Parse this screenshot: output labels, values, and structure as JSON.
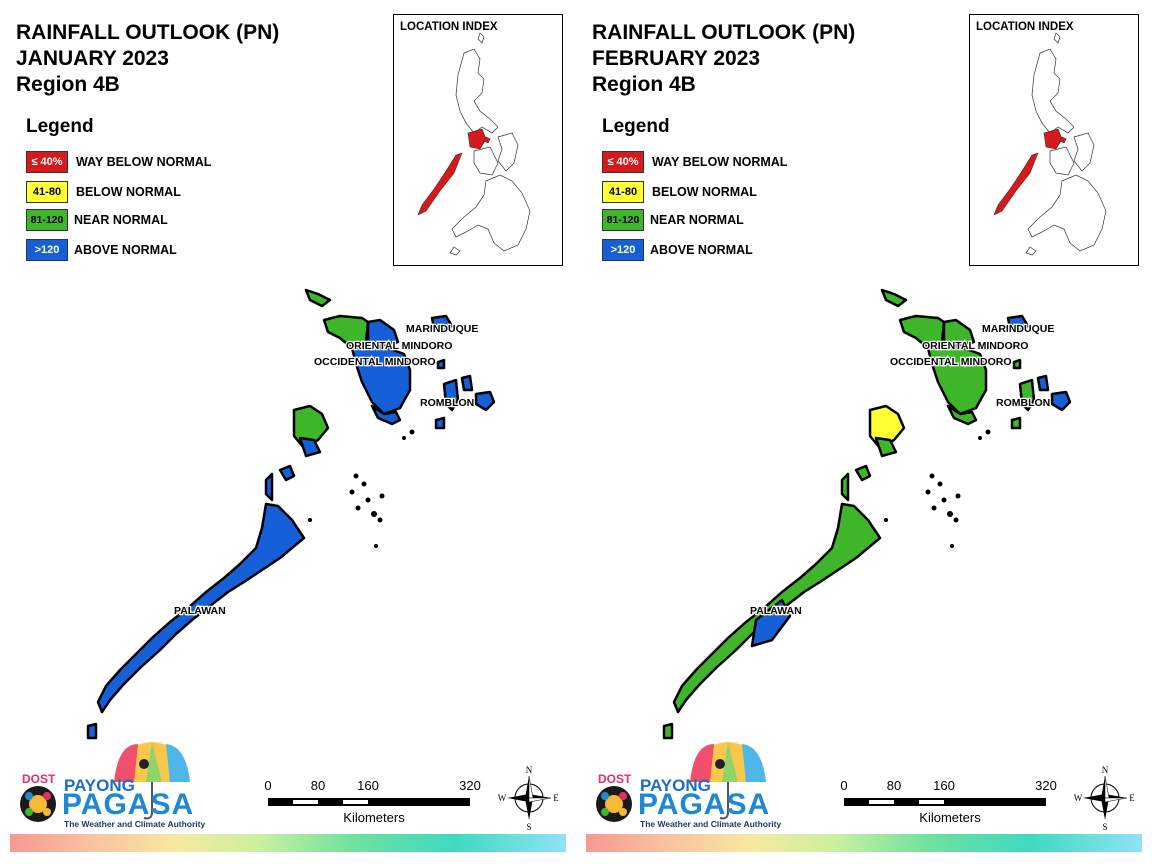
{
  "panels": [
    {
      "title_line1": "RAINFALL OUTLOOK (PN)",
      "title_line2": "JANUARY 2023",
      "title_line3": "Region 4B",
      "legend_title": "Legend",
      "legend": [
        {
          "code": "≤ 40%",
          "label": "WAY BELOW NORMAL",
          "color": "#d7191c",
          "text_color": "#ffffff"
        },
        {
          "code": "41-80",
          "label": "BELOW NORMAL",
          "color": "#ffff33",
          "text_color": "#000000"
        },
        {
          "code": "81-120",
          "label": "NEAR NORMAL",
          "color": "#3fb62a",
          "text_color": "#000000"
        },
        {
          "code": ">120",
          "label": "ABOVE NORMAL",
          "color": "#1560d8",
          "text_color": "#ffffff"
        }
      ],
      "location_index_title": "LOCATION INDEX",
      "provinces": [
        {
          "name": "MARINDUQUE",
          "category": "ABOVE NORMAL"
        },
        {
          "name": "ORIENTAL MINDORO",
          "category": "ABOVE NORMAL"
        },
        {
          "name": "OCCIDENTAL MINDORO",
          "category": "NEAR NORMAL"
        },
        {
          "name": "ROMBLON",
          "category": "ABOVE NORMAL"
        },
        {
          "name": "PALAWAN",
          "category": "ABOVE NORMAL"
        }
      ]
    },
    {
      "title_line1": "RAINFALL OUTLOOK (PN)",
      "title_line2": "FEBRUARY 2023",
      "title_line3": "Region 4B",
      "legend_title": "Legend",
      "legend": [
        {
          "code": "≤ 40%",
          "label": "WAY BELOW NORMAL",
          "color": "#d7191c",
          "text_color": "#ffffff"
        },
        {
          "code": "41-80",
          "label": "BELOW NORMAL",
          "color": "#ffff33",
          "text_color": "#000000"
        },
        {
          "code": "81-120",
          "label": "NEAR NORMAL",
          "color": "#3fb62a",
          "text_color": "#000000"
        },
        {
          "code": ">120",
          "label": "ABOVE NORMAL",
          "color": "#1560d8",
          "text_color": "#ffffff"
        }
      ],
      "location_index_title": "LOCATION INDEX",
      "provinces": [
        {
          "name": "MARINDUQUE",
          "category": "ABOVE NORMAL"
        },
        {
          "name": "ORIENTAL MINDORO",
          "category": "NEAR NORMAL"
        },
        {
          "name": "OCCIDENTAL MINDORO",
          "category": "NEAR NORMAL"
        },
        {
          "name": "ROMBLON",
          "category": "NEAR NORMAL"
        },
        {
          "name": "PALAWAN",
          "category": "NEAR NORMAL"
        }
      ]
    }
  ],
  "branding": {
    "dost": "DOST",
    "payong": "PAYONG",
    "pagasa": "PAGASA",
    "tagline": "The Weather and Climate Authority"
  },
  "scale": {
    "ticks": [
      "0",
      "80",
      "160",
      "320"
    ],
    "unit": "Kilometers"
  },
  "compass": {
    "n": "N",
    "s": "S",
    "e": "E",
    "w": "W"
  },
  "colors": {
    "highlight_region": "#d7191c",
    "logo_blue": "#1e88d6"
  }
}
